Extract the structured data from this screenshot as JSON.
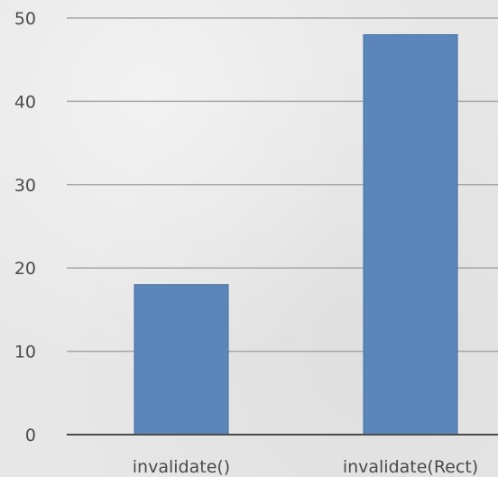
{
  "chart_data": {
    "type": "bar",
    "categories": [
      "invalidate()",
      "invalidate(Rect)"
    ],
    "values": [
      18,
      48
    ],
    "title": "",
    "xlabel": "",
    "ylabel": "",
    "ylim": [
      0,
      50
    ],
    "yticks": [
      0,
      10,
      20,
      30,
      40,
      50
    ],
    "grid": true,
    "legend": "none",
    "colors": {
      "bar": "#5a86bb",
      "bar_edge": "#466f9f",
      "grid": "#a6a6a6",
      "axis": "#4b4b4b",
      "background": "#e7e7e7"
    }
  }
}
